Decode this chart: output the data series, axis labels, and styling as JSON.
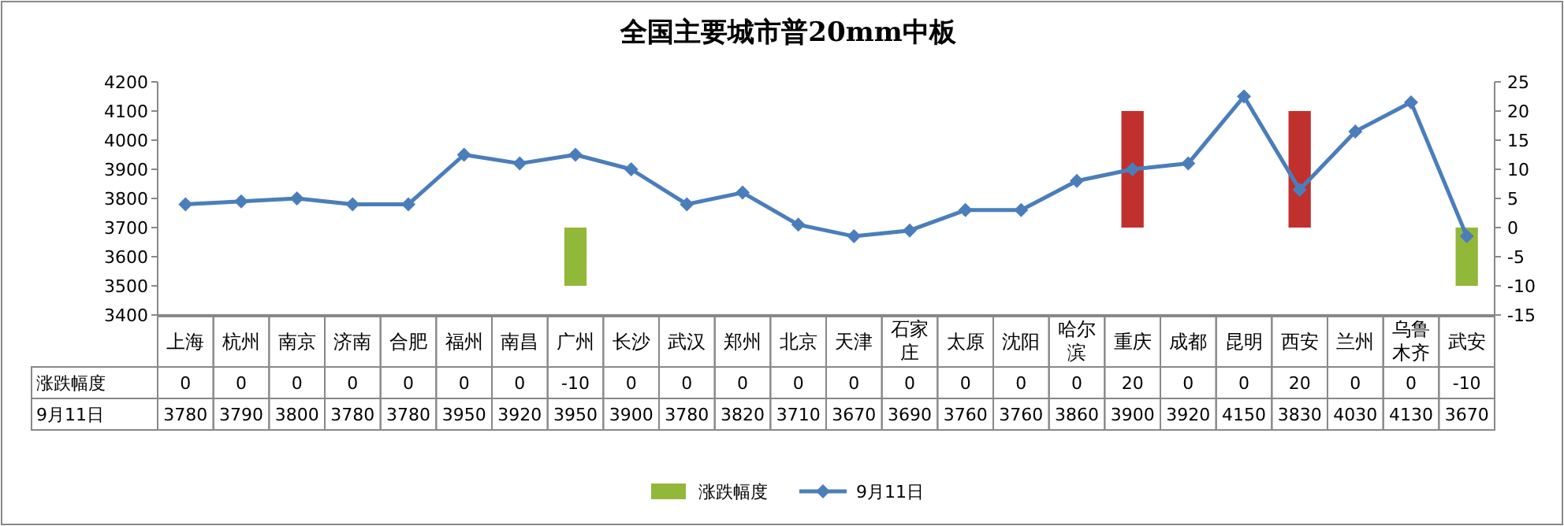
{
  "chart_data": {
    "type": "bar",
    "title": "全国主要城市普20mm中板",
    "categories": [
      "上海",
      "杭州",
      "南京",
      "济南",
      "合肥",
      "福州",
      "南昌",
      "广州",
      "长沙",
      "武汉",
      "郑州",
      "北京",
      "天津",
      "石家庄",
      "太原",
      "沈阳",
      "哈尔滨",
      "重庆",
      "成都",
      "昆明",
      "西安",
      "兰州",
      "乌鲁木齐",
      "武安"
    ],
    "series": [
      {
        "name": "涨跌幅度",
        "type": "bar",
        "axis": "y2",
        "colors": [
          "#92b83a",
          "#92b83a",
          "#92b83a",
          "#92b83a",
          "#92b83a",
          "#92b83a",
          "#92b83a",
          "#92b83a",
          "#92b83a",
          "#92b83a",
          "#92b83a",
          "#92b83a",
          "#92b83a",
          "#92b83a",
          "#92b83a",
          "#92b83a",
          "#92b83a",
          "#c0302c",
          "#92b83a",
          "#92b83a",
          "#c0302c",
          "#92b83a",
          "#92b83a",
          "#92b83a"
        ],
        "values": [
          0,
          0,
          0,
          0,
          0,
          0,
          0,
          -10,
          0,
          0,
          0,
          0,
          0,
          0,
          0,
          0,
          0,
          20,
          0,
          0,
          20,
          0,
          0,
          -10
        ]
      },
      {
        "name": "9月11日",
        "type": "line",
        "color": "#4a7ebb",
        "marker": "diamond",
        "line_style": "solid",
        "values": [
          3780,
          3790,
          3800,
          3780,
          3780,
          3950,
          3920,
          3950,
          3900,
          3780,
          3820,
          3710,
          3670,
          3690,
          3760,
          3760,
          3860,
          3900,
          3920,
          4150,
          3830,
          4030,
          4130,
          3670
        ]
      }
    ],
    "ylim": [
      3400,
      4200
    ],
    "yticks": [
      3400,
      3500,
      3600,
      3700,
      3800,
      3900,
      4000,
      4100,
      4200
    ],
    "y2lim": [
      -15,
      25
    ],
    "y2ticks": [
      -15,
      -10,
      -5,
      0,
      5,
      10,
      15,
      20,
      25
    ],
    "data_labels": true,
    "legend": "bottom",
    "grid": false
  }
}
